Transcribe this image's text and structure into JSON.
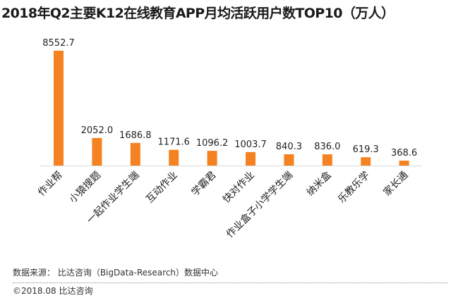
{
  "chart_data": {
    "type": "bar",
    "title": "2018年Q2主要K12在线教育APP月均活跃用户数TOP10（万人）",
    "categories": [
      "作业帮",
      "小猿搜题",
      "一起作业学生端",
      "互动作业",
      "学霸君",
      "快对作业",
      "作业盒子小学学生端",
      "纳米盒",
      "乐教乐学",
      "家长通"
    ],
    "values": [
      8552.7,
      2052.0,
      1686.8,
      1171.6,
      1096.2,
      1003.7,
      840.3,
      836.0,
      619.3,
      368.6
    ],
    "value_labels": [
      "8552.7",
      "2052.0",
      "1686.8",
      "1171.6",
      "1096.2",
      "1003.7",
      "840.3",
      "836.0",
      "619.3",
      "368.6"
    ],
    "xlabel": "",
    "ylabel": "",
    "ylim": [
      0,
      8552.7
    ],
    "grid": false,
    "bar_color": "#F58220"
  },
  "footer": {
    "source": "数据来源： 比达咨询（BigData-Research）数据中心",
    "copyright": "©2018.08  比达咨询"
  }
}
